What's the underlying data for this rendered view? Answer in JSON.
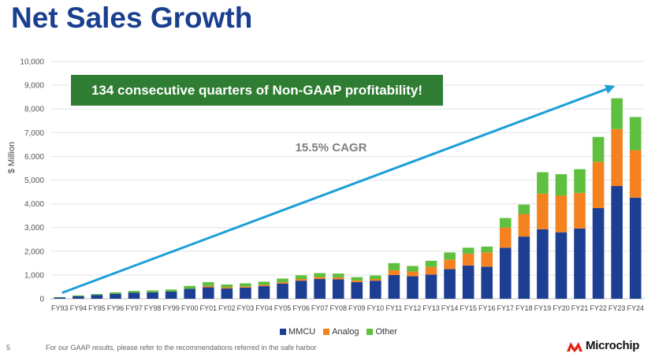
{
  "title": "Net Sales Growth",
  "footer": {
    "page_number": "5",
    "text": "For our GAAP results, please refer to the recommendations referred in the safe harbor",
    "logo_text": "Microchip"
  },
  "colors": {
    "title": "#1a3f8f",
    "mmcu": "#1c3f94",
    "analog": "#f58221",
    "other": "#5fbf3e",
    "arrow": "#1b9fd8",
    "banner": "#2e7d32"
  },
  "chart_data": {
    "type": "bar",
    "stacked": true,
    "ylabel": "$ Million",
    "ylim": [
      0,
      10000
    ],
    "yticks": [
      0,
      1000,
      2000,
      3000,
      4000,
      5000,
      6000,
      7000,
      8000,
      9000,
      10000
    ],
    "ytick_labels": [
      "0",
      "1,000",
      "2,000",
      "3,000",
      "4,000",
      "5,000",
      "6,000",
      "7,000",
      "8,000",
      "9,000",
      "10,000"
    ],
    "grid": true,
    "legend": "bottom-center",
    "categories": [
      "FY93",
      "FY94",
      "FY95",
      "FY96",
      "FY97",
      "FY98",
      "FY99",
      "FY00",
      "FY01",
      "FY02",
      "FY03",
      "FY04",
      "FY05",
      "FY06",
      "FY07",
      "FY08",
      "FY09",
      "FY10",
      "FY11",
      "FY12",
      "FY13",
      "FY14",
      "FY15",
      "FY16",
      "FY17",
      "FY18",
      "FY19",
      "FY20",
      "FY21",
      "FY22",
      "FY23",
      "FY24"
    ],
    "series": [
      {
        "name": "MMCU",
        "values": [
          50,
          110,
          160,
          210,
          260,
          270,
          300,
          420,
          480,
          430,
          470,
          530,
          640,
          760,
          830,
          820,
          700,
          760,
          1000,
          950,
          1020,
          1250,
          1400,
          1350,
          2150,
          2620,
          2930,
          2800,
          2960,
          3820,
          4750,
          4260
        ]
      },
      {
        "name": "Analog",
        "values": [
          0,
          0,
          0,
          0,
          0,
          0,
          0,
          0,
          60,
          50,
          50,
          50,
          60,
          70,
          80,
          80,
          70,
          70,
          200,
          200,
          320,
          400,
          500,
          600,
          850,
          950,
          1500,
          1550,
          1500,
          1950,
          2400,
          2000
        ]
      },
      {
        "name": "Other",
        "values": [
          20,
          30,
          40,
          60,
          70,
          80,
          90,
          120,
          160,
          120,
          130,
          140,
          150,
          160,
          170,
          160,
          140,
          150,
          300,
          230,
          260,
          300,
          250,
          250,
          400,
          400,
          900,
          900,
          1000,
          1050,
          1300,
          1400
        ]
      }
    ],
    "annotations": {
      "banner": "134 consecutive quarters of Non-GAAP profitability!",
      "cagr": "15.5% CAGR",
      "arrow_from": [
        "FY93",
        250
      ],
      "arrow_to": [
        "FY23",
        8900
      ]
    }
  }
}
